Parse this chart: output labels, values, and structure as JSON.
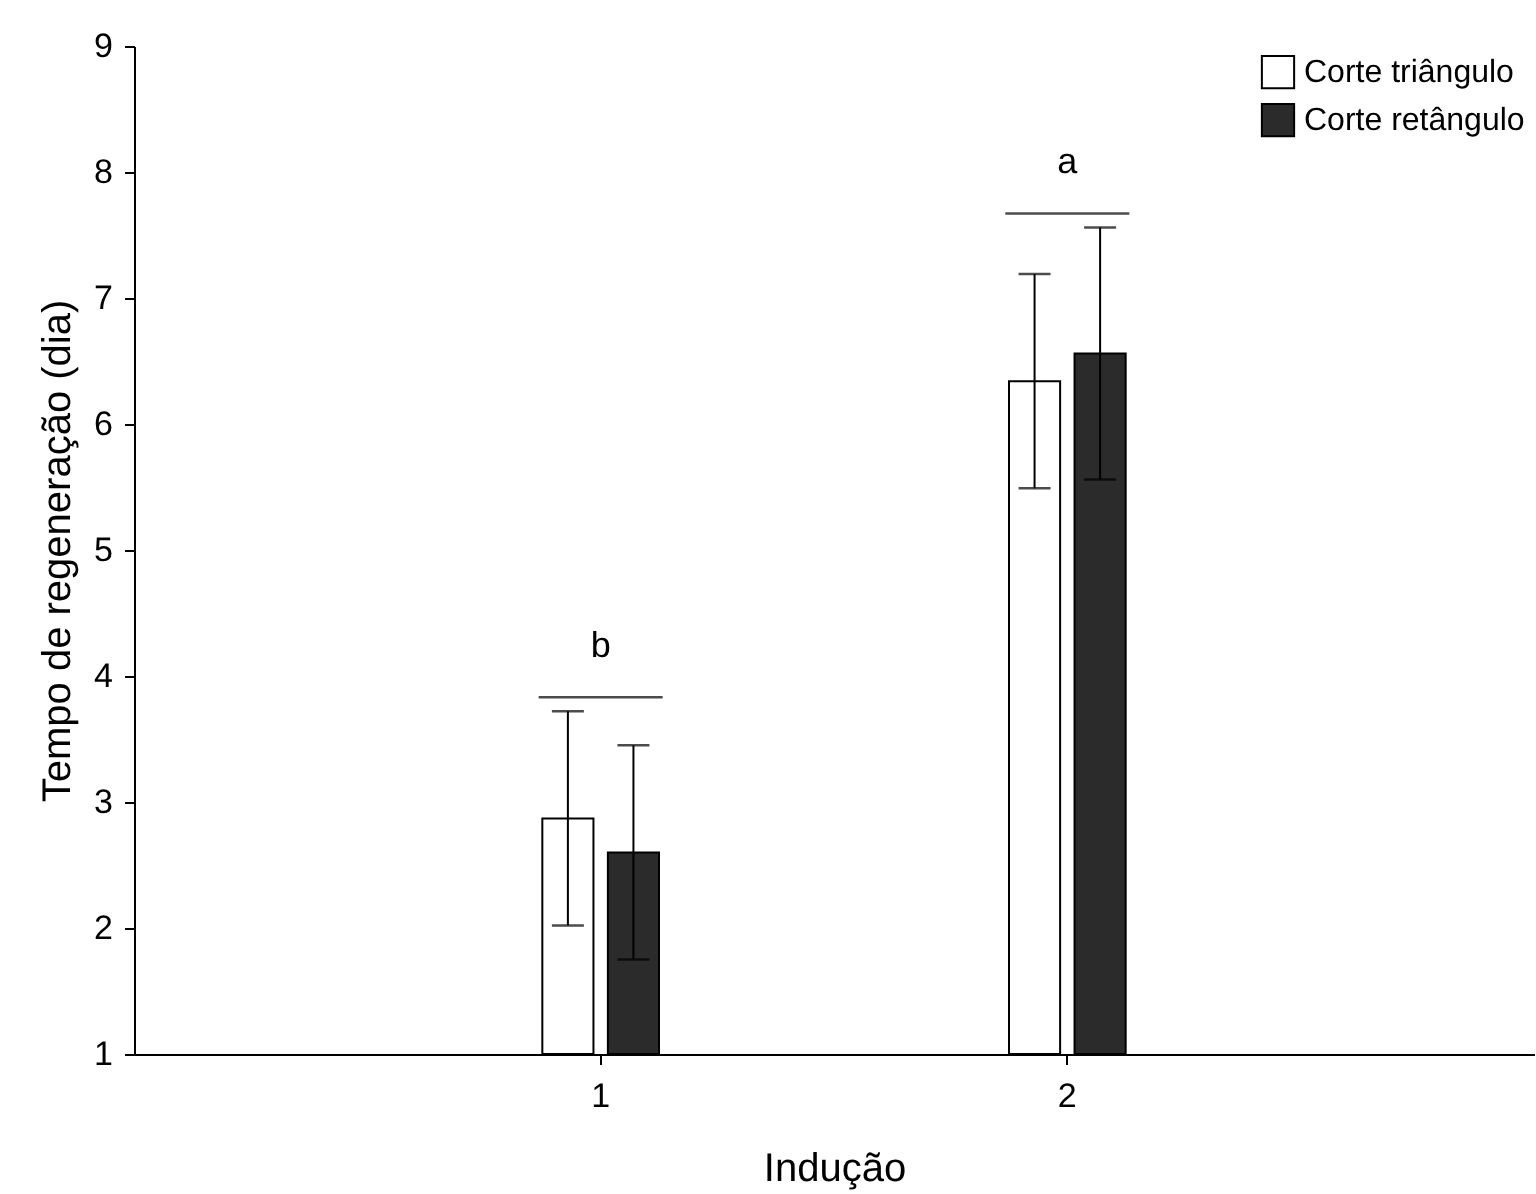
{
  "chart_data": {
    "type": "bar",
    "xlabel": "Indução",
    "ylabel": "Tempo de regeneração (dia)",
    "categories": [
      "1",
      "2"
    ],
    "series": [
      {
        "name": "Corte triângulo",
        "color": "#ffffff",
        "values": [
          2.87,
          6.34
        ],
        "errors": [
          0.85,
          0.85
        ]
      },
      {
        "name": "Corte retângulo",
        "color": "#2b2b2b",
        "values": [
          2.6,
          6.56
        ],
        "errors": [
          0.85,
          1.0
        ]
      }
    ],
    "ylim": [
      1,
      9
    ],
    "yticks": [
      1,
      2,
      3,
      4,
      5,
      6,
      7,
      8,
      9
    ],
    "grid": false,
    "legend": "top right",
    "annotations": [
      "b",
      "a"
    ]
  }
}
